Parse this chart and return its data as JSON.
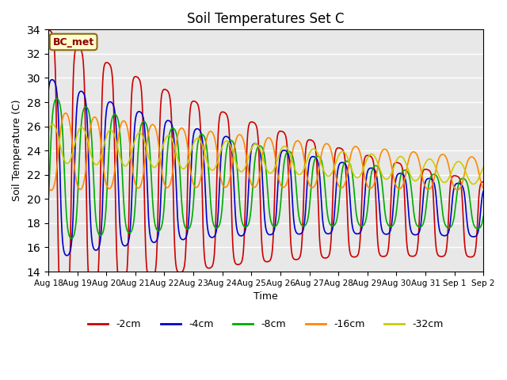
{
  "title": "Soil Temperatures Set C",
  "xlabel": "Time",
  "ylabel": "Soil Temperature (C)",
  "ylim": [
    14,
    34
  ],
  "yticks": [
    14,
    16,
    18,
    20,
    22,
    24,
    26,
    28,
    30,
    32,
    34
  ],
  "n_days": 15,
  "n_points": 1500,
  "colors": {
    "-2cm": "#cc0000",
    "-4cm": "#0000cc",
    "-8cm": "#00aa00",
    "-16cm": "#ff8800",
    "-32cm": "#cccc00"
  },
  "legend_labels": [
    "-2cm",
    "-4cm",
    "-8cm",
    "-16cm",
    "-32cm"
  ],
  "xtick_labels": [
    "Aug 18",
    "Aug 19",
    "Aug 20",
    "Aug 21",
    "Aug 22",
    "Aug 23",
    "Aug 24",
    "Aug 25",
    "Aug 26",
    "Aug 27",
    "Aug 28",
    "Aug 29",
    "Aug 30",
    "Aug 31",
    "Sep 1",
    "Sep 2"
  ],
  "annotation_text": "BC_met",
  "background_color": "#e8e8e8",
  "line_width": 1.2
}
